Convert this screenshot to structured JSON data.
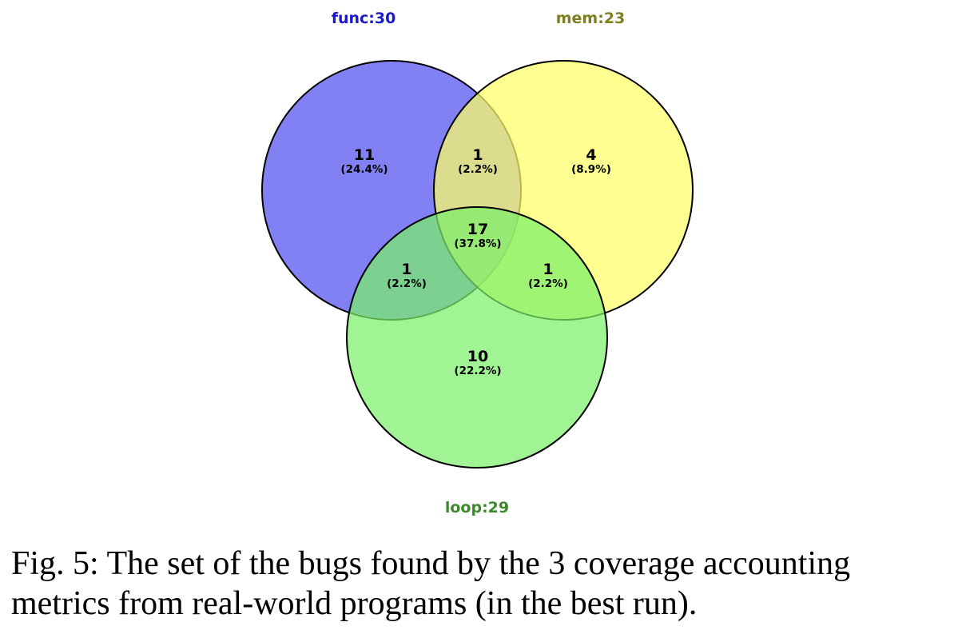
{
  "sets": [
    {
      "label": "func:30",
      "color": "#5050f0",
      "label_color": "#1a1acc"
    },
    {
      "label": "mem:23",
      "color": "#ffff66",
      "label_color": "#7f7f1f"
    },
    {
      "label": "loop:29",
      "color": "#7cf06a",
      "label_color": "#3d8a2a"
    }
  ],
  "regions": [
    {
      "id": "func-only",
      "count": "11",
      "percent": "(24.4%)"
    },
    {
      "id": "func-mem",
      "count": "1",
      "percent": "(2.2%)"
    },
    {
      "id": "mem-only",
      "count": "4",
      "percent": "(8.9%)"
    },
    {
      "id": "all-three",
      "count": "17",
      "percent": "(37.8%)"
    },
    {
      "id": "func-loop",
      "count": "1",
      "percent": "(2.2%)"
    },
    {
      "id": "mem-loop",
      "count": "1",
      "percent": "(2.2%)"
    },
    {
      "id": "loop-only",
      "count": "10",
      "percent": "(22.2%)"
    }
  ],
  "caption": "Fig. 5: The set of the bugs found by the 3 coverage accounting metrics from real-world programs (in the best run)."
}
